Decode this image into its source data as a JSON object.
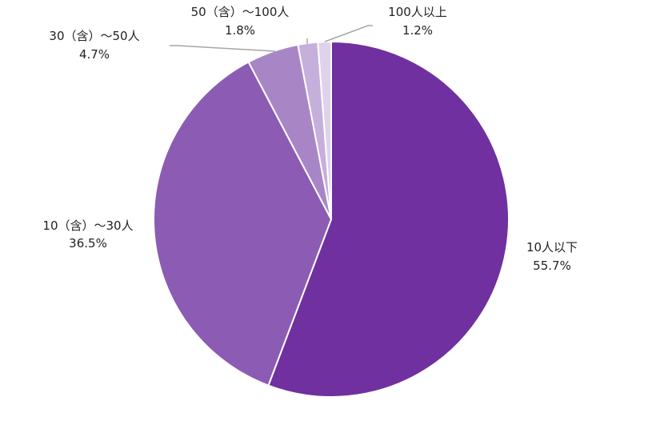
{
  "chart_data": {
    "type": "pie",
    "title": "",
    "start_angle_deg": 0,
    "direction": "clockwise",
    "slices": [
      {
        "label": "10人以下",
        "value": 55.7,
        "value_label": "55.7%",
        "color": "#7030A0"
      },
      {
        "label": "10（含）～30人",
        "value": 36.5,
        "value_label": "36.5%",
        "color": "#8C5BB3"
      },
      {
        "label": "30（含）～50人",
        "value": 4.7,
        "value_label": "4.7%",
        "color": "#A886C6"
      },
      {
        "label": "50（含）～100人",
        "value": 1.8,
        "value_label": "1.8%",
        "color": "#C5AFDB"
      },
      {
        "label": "100人以上",
        "value": 1.2,
        "value_label": "1.2%",
        "color": "#DFD3EC"
      }
    ],
    "legend": "none",
    "data_labels": "outside with leader lines for small slices"
  }
}
